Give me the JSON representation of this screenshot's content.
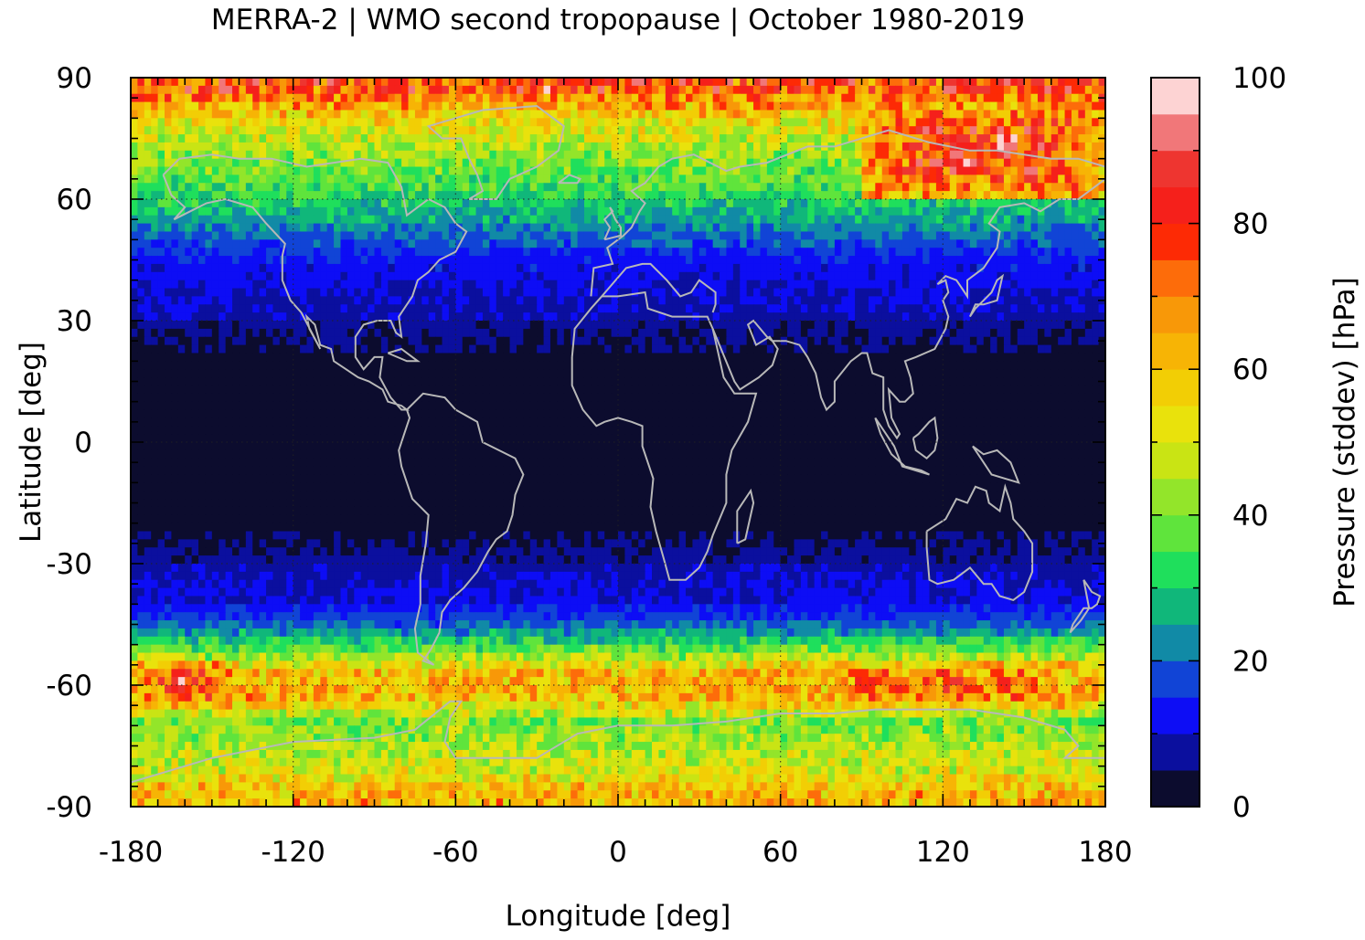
{
  "chart_data": {
    "type": "heatmap",
    "title": "MERRA-2 | WMO second tropopause | October 1980-2019",
    "xlabel": "Longitude [deg]",
    "ylabel": "Latitude [deg]",
    "colorbar_label": "Pressure (stddev) [hPa]",
    "xlim": [
      -180,
      180
    ],
    "ylim": [
      -90,
      90
    ],
    "xticks": [
      "-180",
      "-120",
      "-60",
      "0",
      "60",
      "120",
      "180"
    ],
    "yticks": [
      "90",
      "60",
      "30",
      "0",
      "-30",
      "-60",
      "-90"
    ],
    "colorbar_range": [
      0,
      100
    ],
    "colorbar_ticks": [
      "100",
      "80",
      "60",
      "40",
      "20",
      "0"
    ],
    "grid": true,
    "colormap": [
      "#0c0c2e",
      "#0b0f9e",
      "#0d0df5",
      "#1144d6",
      "#118aa6",
      "#10b77a",
      "#1fdf5c",
      "#5fe43c",
      "#93e52a",
      "#c9e414",
      "#e9e20c",
      "#f2ce05",
      "#f7b405",
      "#f89808",
      "#fd6c0a",
      "#fd2a05",
      "#f5201b",
      "#ee3530",
      "#f17779",
      "#fdd3d3"
    ],
    "zonal_mean_stddev": [
      {
        "lat": 87,
        "value": 76
      },
      {
        "lat": 81,
        "value": 58
      },
      {
        "lat": 75,
        "value": 48
      },
      {
        "lat": 69,
        "value": 40
      },
      {
        "lat": 63,
        "value": 35
      },
      {
        "lat": 57,
        "value": 28
      },
      {
        "lat": 51,
        "value": 20
      },
      {
        "lat": 45,
        "value": 13
      },
      {
        "lat": 39,
        "value": 11
      },
      {
        "lat": 33,
        "value": 9
      },
      {
        "lat": 27,
        "value": 6
      },
      {
        "lat": 21,
        "value": 3
      },
      {
        "lat": 15,
        "value": 2
      },
      {
        "lat": 9,
        "value": 2
      },
      {
        "lat": 3,
        "value": 2
      },
      {
        "lat": -3,
        "value": 2
      },
      {
        "lat": -9,
        "value": 2
      },
      {
        "lat": -15,
        "value": 2
      },
      {
        "lat": -21,
        "value": 3
      },
      {
        "lat": -27,
        "value": 6
      },
      {
        "lat": -33,
        "value": 9
      },
      {
        "lat": -39,
        "value": 11
      },
      {
        "lat": -45,
        "value": 19
      },
      {
        "lat": -51,
        "value": 37
      },
      {
        "lat": -57,
        "value": 60
      },
      {
        "lat": -63,
        "value": 62
      },
      {
        "lat": -69,
        "value": 40
      },
      {
        "lat": -75,
        "value": 45
      },
      {
        "lat": -81,
        "value": 50
      },
      {
        "lat": -87,
        "value": 62
      }
    ],
    "regional_maxima": [
      {
        "lon_range": [
          -180,
          -140
        ],
        "lat_range": [
          -66,
          -54
        ],
        "value": 85
      },
      {
        "lon_range": [
          60,
          180
        ],
        "lat_range": [
          -66,
          -54
        ],
        "value": 80
      },
      {
        "lon_range": [
          90,
          180
        ],
        "lat_range": [
          60,
          84
        ],
        "value": 90
      },
      {
        "lon_range": [
          -120,
          60
        ],
        "lat_range": [
          84,
          90
        ],
        "value": 82
      }
    ]
  }
}
